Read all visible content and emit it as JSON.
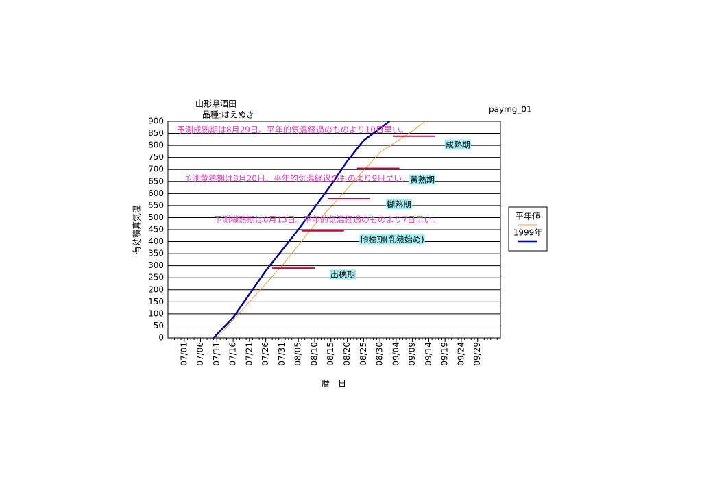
{
  "chart_data": {
    "type": "line",
    "title": "山形県酒田",
    "subtitle": "品種:はえぬき",
    "code": "paymg_01",
    "x_label": "暦　日",
    "y_label": "有効積算気温",
    "xlim": [
      "06/26",
      "10/06"
    ],
    "xticks": [
      "07/01",
      "07/06",
      "07/11",
      "07/16",
      "07/21",
      "07/26",
      "07/31",
      "08/05",
      "08/10",
      "08/15",
      "08/20",
      "08/25",
      "08/30",
      "09/04",
      "09/09",
      "09/14",
      "09/19",
      "09/24",
      "09/29"
    ],
    "ylim": [
      0,
      900
    ],
    "yticks": [
      0,
      50,
      100,
      150,
      200,
      250,
      300,
      350,
      400,
      450,
      500,
      550,
      600,
      650,
      700,
      750,
      800,
      850,
      900
    ],
    "grid": true,
    "series": [
      {
        "name": "平年値",
        "color": "#f0a040",
        "x": [
          "07/11",
          "07/21",
          "07/31",
          "08/10",
          "08/20",
          "08/30",
          "09/09",
          "09/13"
        ],
        "values": [
          0,
          150,
          300,
          470,
          620,
          770,
          860,
          900
        ]
      },
      {
        "name": "1999年",
        "color": "#00009c",
        "x": [
          "07/10",
          "07/16",
          "07/26",
          "08/05",
          "08/15",
          "08/20",
          "08/25",
          "09/02"
        ],
        "values": [
          0,
          85,
          279,
          450,
          635,
          735,
          820,
          900
        ]
      }
    ],
    "stages": [
      {
        "label": "出穂期",
        "value": 290,
        "x": [
          "07/28",
          "08/10"
        ]
      },
      {
        "label": "傾穂期(乳熟始め)",
        "value": 445,
        "x": [
          "08/06",
          "08/19"
        ]
      },
      {
        "label": "糊熟期",
        "value": 578,
        "x": [
          "08/14",
          "08/27"
        ]
      },
      {
        "label": "黄熟期",
        "value": 705,
        "x": [
          "08/23",
          "09/05"
        ]
      },
      {
        "label": "成熟期",
        "value": 838,
        "x": [
          "09/03",
          "09/16"
        ]
      }
    ],
    "stage_color": "#d00040",
    "annotations": [
      "予測成熟期は8月29日。平年的気温経過のものより10日早い。",
      "予測黄熟期は8月20日。平年的気温経過のものより9日早い。",
      "予測糊熟期は8月13日。平年的気温経過のものより7日早い。"
    ]
  }
}
